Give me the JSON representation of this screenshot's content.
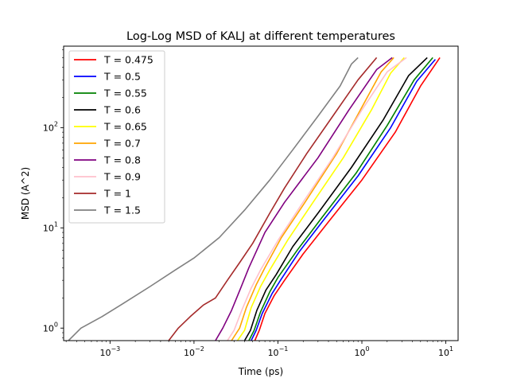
{
  "chart_data": {
    "type": "line",
    "title": "Log-Log MSD of KALJ at different temperatures",
    "xlabel": "Time (ps)",
    "ylabel": "MSD (A^2)",
    "xscale": "log",
    "yscale": "log",
    "xlim": [
      0.00028,
      14
    ],
    "ylim": [
      0.75,
      650
    ],
    "x_ticks": [
      {
        "value": 0.001,
        "base": "10",
        "exp": "−3"
      },
      {
        "value": 0.01,
        "base": "10",
        "exp": "−2"
      },
      {
        "value": 0.1,
        "base": "10",
        "exp": "−1"
      },
      {
        "value": 1,
        "base": "10",
        "exp": "0"
      },
      {
        "value": 10,
        "base": "10",
        "exp": "1"
      }
    ],
    "y_ticks": [
      {
        "value": 1,
        "base": "10",
        "exp": "0"
      },
      {
        "value": 10,
        "base": "10",
        "exp": "1"
      },
      {
        "value": 100,
        "base": "10",
        "exp": "2"
      }
    ],
    "legend_position": "upper-left",
    "grid": false,
    "series": [
      {
        "name": "T = 0.475",
        "color": "#ff0000",
        "x": [
          0.053,
          0.06,
          0.07,
          0.09,
          0.12,
          0.2,
          0.4,
          1.0,
          2.5,
          5.0,
          8.5
        ],
        "y": [
          0.75,
          0.95,
          1.4,
          2.1,
          3.0,
          5.5,
          11.5,
          30,
          90,
          260,
          500
        ]
      },
      {
        "name": "T = 0.5",
        "color": "#0000ff",
        "x": [
          0.048,
          0.055,
          0.065,
          0.085,
          0.11,
          0.18,
          0.35,
          0.9,
          2.2,
          4.5,
          7.5
        ],
        "y": [
          0.75,
          0.95,
          1.4,
          2.2,
          3.1,
          5.8,
          12,
          33,
          100,
          290,
          480
        ]
      },
      {
        "name": "T = 0.55",
        "color": "#008000",
        "x": [
          0.045,
          0.052,
          0.062,
          0.08,
          0.1,
          0.17,
          0.33,
          0.85,
          2.0,
          4.2,
          7.0
        ],
        "y": [
          0.75,
          0.95,
          1.45,
          2.3,
          3.2,
          6.0,
          12.5,
          35,
          105,
          300,
          500
        ]
      },
      {
        "name": "T = 0.6",
        "color": "#000000",
        "x": [
          0.04,
          0.047,
          0.056,
          0.072,
          0.095,
          0.15,
          0.3,
          0.75,
          1.8,
          3.6,
          6.0
        ],
        "y": [
          0.75,
          0.95,
          1.5,
          2.4,
          3.4,
          6.5,
          14,
          40,
          120,
          330,
          500
        ]
      },
      {
        "name": "T = 0.65",
        "color": "#ffff00",
        "x": [
          0.033,
          0.04,
          0.048,
          0.062,
          0.08,
          0.13,
          0.25,
          0.6,
          1.3,
          2.2,
          3.2
        ],
        "y": [
          0.75,
          0.95,
          1.6,
          2.6,
          3.8,
          7.5,
          17,
          50,
          150,
          350,
          500
        ]
      },
      {
        "name": "T = 0.7",
        "color": "#ffa500",
        "x": [
          0.028,
          0.035,
          0.042,
          0.055,
          0.07,
          0.11,
          0.21,
          0.5,
          1.0,
          1.7,
          2.4
        ],
        "y": [
          0.75,
          1.0,
          1.6,
          2.7,
          4.0,
          8.0,
          18,
          55,
          160,
          360,
          500
        ]
      },
      {
        "name": "T = 0.8",
        "color": "#800080",
        "x": [
          0.018,
          0.022,
          0.028,
          0.036,
          0.045,
          0.07,
          0.12,
          0.3,
          0.7,
          1.5,
          2.3
        ],
        "y": [
          0.75,
          1.0,
          1.5,
          2.5,
          4.0,
          9.0,
          18,
          50,
          150,
          380,
          500
        ]
      },
      {
        "name": "T = 0.9",
        "color": "#ffc0cb",
        "x": [
          0.025,
          0.03,
          0.037,
          0.048,
          0.062,
          0.1,
          0.19,
          0.45,
          1.0,
          2.0,
          3.4
        ],
        "y": [
          0.75,
          0.95,
          1.5,
          2.5,
          3.8,
          7.5,
          17,
          50,
          150,
          360,
          500
        ]
      },
      {
        "name": "T = 1",
        "color": "#a52a2a",
        "x": [
          0.005,
          0.0065,
          0.009,
          0.013,
          0.018,
          0.025,
          0.035,
          0.05,
          0.08,
          0.12,
          0.22,
          0.45,
          0.9,
          1.5
        ],
        "y": [
          0.75,
          1.0,
          1.3,
          1.7,
          2.0,
          3.0,
          4.5,
          7.0,
          14,
          25,
          55,
          130,
          300,
          500
        ]
      },
      {
        "name": "T = 1.5",
        "color": "#808080",
        "x": [
          0.00032,
          0.00045,
          0.0008,
          0.0015,
          0.003,
          0.006,
          0.01,
          0.02,
          0.04,
          0.08,
          0.15,
          0.3,
          0.55,
          0.75,
          0.9
        ],
        "y": [
          0.75,
          1.0,
          1.3,
          1.8,
          2.6,
          3.8,
          5.0,
          8.0,
          15,
          30,
          60,
          130,
          260,
          430,
          500
        ]
      }
    ]
  }
}
